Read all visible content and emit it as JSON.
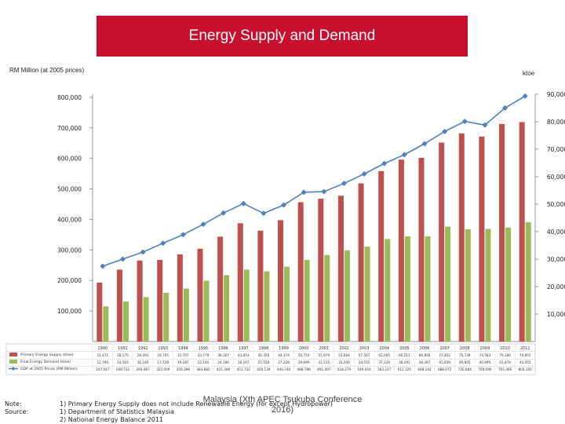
{
  "header": {
    "title": "Energy Supply and Demand"
  },
  "axes": {
    "left_label": "RM Million (at 2005 prices)",
    "right_label": "ktoe"
  },
  "chart_data": {
    "type": "bar",
    "categories": [
      "1990",
      "1991",
      "1992",
      "1993",
      "1994",
      "1995",
      "1996",
      "1997",
      "1998",
      "1999",
      "2000",
      "2001",
      "2002",
      "2003",
      "2004",
      "2005",
      "2006",
      "2007",
      "2008",
      "2009",
      "2010",
      "2011"
    ],
    "left_ticks": [
      "100,000",
      "200,000",
      "300,000",
      "400,000",
      "500,000",
      "600,000",
      "700,000",
      "800,000"
    ],
    "right_ticks": [
      "10,000",
      "20,000",
      "30,000",
      "40,000",
      "50,000",
      "60,000",
      "70,000",
      "80,000",
      "90,000"
    ],
    "left_range": [
      0,
      800000
    ],
    "right_range": [
      0,
      90000
    ],
    "series": [
      {
        "name": "Primary Energy Supply (ktoe)",
        "axis": "right",
        "type": "bar",
        "color": "#c0504d",
        "values": [
          21471,
          26175,
          29491,
          29705,
          31707,
          33779,
          38167,
          43053,
          40356,
          44174,
          50710,
          51979,
          53064,
          57567,
          62005,
          66211,
          66856,
          72402,
          75739,
          74583,
          79180,
          79855
        ]
      },
      {
        "name": "Final Energy Demand (ktoe)",
        "axis": "right",
        "type": "bar",
        "color": "#9bbb59",
        "values": [
          12790,
          14563,
          16185,
          17728,
          19287,
          22164,
          24184,
          26167,
          25558,
          27228,
          29699,
          31515,
          33200,
          34555,
          37320,
          38291,
          38287,
          41839,
          40845,
          40995,
          41476,
          43455
        ]
      },
      {
        "name": "GDP at 2005 Prices (RM Million)",
        "axis": "left",
        "type": "line",
        "color": "#4f81bd",
        "values": [
          247000,
          270000,
          293000,
          322000,
          350000,
          384000,
          421000,
          452000,
          420000,
          447000,
          489000,
          491000,
          518000,
          549000,
          583000,
          612000,
          648000,
          688000,
          721000,
          709000,
          765000,
          804000
        ]
      }
    ],
    "table_rows": [
      [
        "21,471",
        "26,175",
        "29,491",
        "29,705",
        "31,707",
        "33,779",
        "38,167",
        "43,053",
        "40,356",
        "44,174",
        "50,710",
        "51,979",
        "53,064",
        "57,567",
        "62,005",
        "66,211",
        "66,856",
        "72,402",
        "75,739",
        "74,583",
        "79,180",
        "79,855"
      ],
      [
        "12,790",
        "14,563",
        "16,185",
        "17,728",
        "19,287",
        "22,164",
        "24,184",
        "26,167",
        "25,558",
        "27,228",
        "29,699",
        "31,515",
        "33,200",
        "34,555",
        "37,320",
        "38,291",
        "38,287",
        "41,839",
        "40,845",
        "40,995",
        "41,476",
        "43,455"
      ],
      [
        "247,047",
        "269,732",
        "293,467",
        "322,009",
        "350,396",
        "383,882",
        "421,380",
        "451,722",
        "420,139",
        "446,740",
        "488,798",
        "491,097",
        "518,279",
        "549,054",
        "583,237",
        "612,325",
        "648,102",
        "688,072",
        "720,684",
        "709,090",
        "765,366",
        "804,350"
      ]
    ],
    "ylabel_left": "RM Million (at 2005 prices)",
    "ylabel_right": "ktoe",
    "grid": false,
    "legend": "bottom-table"
  },
  "footer": {
    "note_label": "Note:",
    "source_label": "Source:",
    "note_1": "1) Primary Energy Supply does not include Renewable Energy (for except Hydropower)",
    "source_1": "1) Department of Statistics Malaysia",
    "source_2": "2) National Energy Balance 2011",
    "credit_line1": "Malaysia (Xth APEC Tsukuba Conference",
    "credit_line2": "2016)"
  }
}
